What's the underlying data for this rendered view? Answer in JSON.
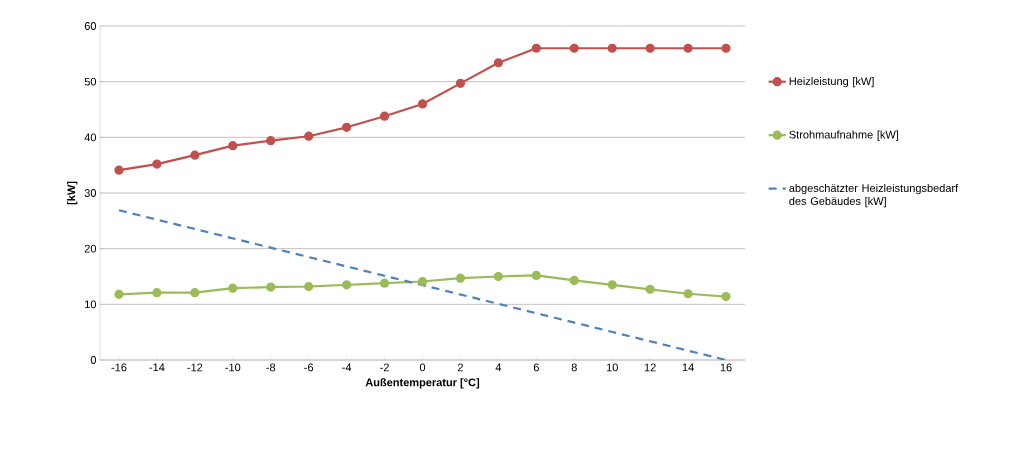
{
  "chart_data": {
    "type": "line",
    "xlabel": "Außentemperatur [°C]",
    "ylabel": "[kW]",
    "x": [
      -16,
      -14,
      -12,
      -10,
      -8,
      -6,
      -4,
      -2,
      0,
      2,
      4,
      6,
      8,
      10,
      12,
      14,
      16
    ],
    "xlim": [
      -17,
      17
    ],
    "xticks": [
      -16,
      -14,
      -12,
      -10,
      -8,
      -6,
      -4,
      -2,
      0,
      2,
      4,
      6,
      8,
      10,
      12,
      14,
      16
    ],
    "ylim": [
      0,
      60
    ],
    "yticks": [
      0,
      10,
      20,
      30,
      40,
      50,
      60
    ],
    "grid": "y",
    "legend": "right",
    "marker": "circle",
    "series": [
      {
        "name": "Heizleistung [kW]",
        "color": "#c0504d",
        "values": [
          34.1,
          35.2,
          36.8,
          38.5,
          39.4,
          40.2,
          41.8,
          43.8,
          46.0,
          49.7,
          53.4,
          56.0,
          56.0,
          56.0,
          56.0,
          56.0,
          56.0
        ]
      },
      {
        "name": "Strohmaufnahme [kW]",
        "color": "#9bbb59",
        "values": [
          11.8,
          12.1,
          12.1,
          12.9,
          13.1,
          13.2,
          13.5,
          13.8,
          14.1,
          14.7,
          15.0,
          15.2,
          14.3,
          13.5,
          12.7,
          11.9,
          11.4
        ]
      },
      {
        "name": "abgeschätzter Heizleistungsbedarf des Gebäudes [kW]",
        "color": "#4f81bd",
        "marker": "none",
        "line_style": "dashed",
        "x": [
          -16,
          16
        ],
        "values": [
          26.9,
          0
        ]
      }
    ]
  }
}
